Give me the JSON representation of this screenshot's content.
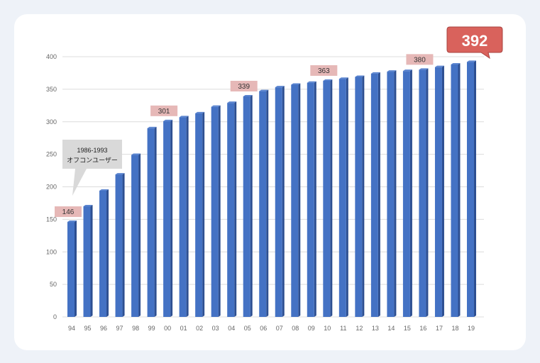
{
  "chart_data": {
    "type": "bar",
    "title": "",
    "xlabel": "",
    "ylabel": "",
    "ylim": [
      0,
      400
    ],
    "yticks": [
      0,
      50,
      100,
      150,
      200,
      250,
      300,
      350,
      400
    ],
    "grid": true,
    "categories": [
      "94",
      "95",
      "96",
      "97",
      "98",
      "99",
      "00",
      "01",
      "02",
      "03",
      "04",
      "05",
      "06",
      "07",
      "08",
      "09",
      "10",
      "11",
      "12",
      "13",
      "14",
      "15",
      "16",
      "17",
      "18",
      "19"
    ],
    "values": [
      146,
      170,
      194,
      219,
      249,
      290,
      301,
      307,
      313,
      323,
      329,
      339,
      347,
      353,
      357,
      360,
      363,
      366,
      369,
      374,
      377,
      378,
      380,
      384,
      388,
      392
    ],
    "data_labels": [
      {
        "category": "94",
        "text": "146"
      },
      {
        "category": "00",
        "text": "301"
      },
      {
        "category": "05",
        "text": "339"
      },
      {
        "category": "10",
        "text": "363"
      },
      {
        "category": "16",
        "text": "380"
      }
    ],
    "highlight_label": {
      "category": "19",
      "text": "392"
    },
    "annotation": {
      "line1": "1986-1993",
      "line2": "オフコンユーザー"
    },
    "colors": {
      "bar": "#4472c4",
      "bar_side": "#2d4f91",
      "label_bg": "#e6b8b7",
      "highlight": "#d9625c"
    }
  }
}
